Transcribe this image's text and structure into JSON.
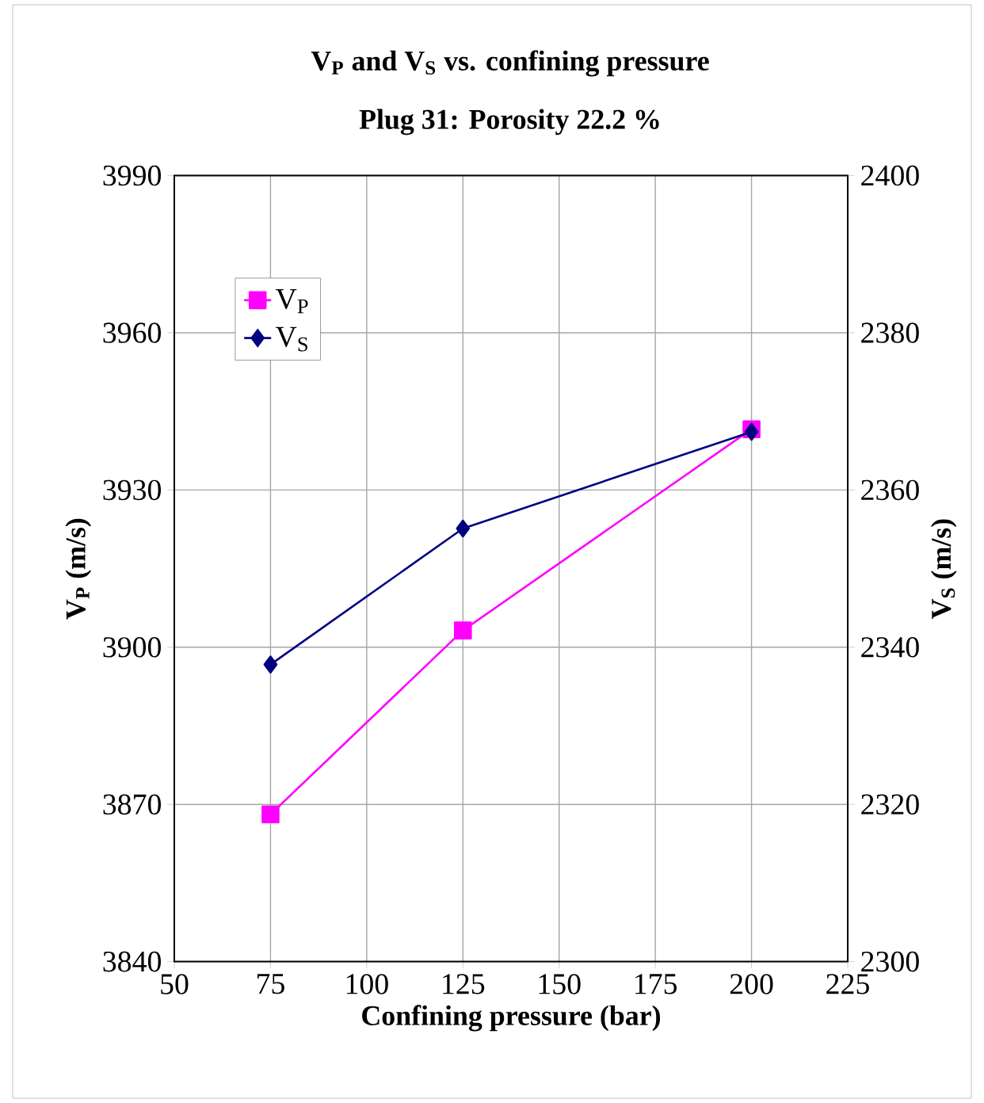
{
  "chart_data": {
    "type": "line",
    "title": "V$_{P}$ and V$_{S}$ vs. confining pressure",
    "subtitle": "Plug 31: Porosity 22.2 %",
    "xlabel": "Confining pressure (bar)",
    "ylabel": "V$_{P}$ (m/s)",
    "y2label": "V$_{S}$ (m/s)",
    "x": [
      75,
      125,
      200
    ],
    "series": [
      {
        "name": "V$_{P}$",
        "color": "#ff00ff",
        "marker": "square",
        "values": [
          3868.1,
          3903.2,
          3941.6
        ]
      },
      {
        "name": "V$_{S}$",
        "color": "#000080",
        "marker": "diamond",
        "axis": "y2",
        "values": [
          2337.8,
          2355.1,
          2367.4
        ]
      }
    ],
    "xlim": [
      50,
      225
    ],
    "xticks": [
      50,
      75,
      100,
      125,
      150,
      175,
      200,
      225
    ],
    "ylim": [
      3840,
      3990
    ],
    "yticks": [
      3840,
      3870,
      3900,
      3930,
      3960,
      3990
    ],
    "y2lim": [
      2300,
      2400
    ],
    "y2ticks": [
      2300,
      2320,
      2340,
      2360,
      2380,
      2400
    ],
    "grid": true,
    "legend": "top left",
    "line_style": "solid"
  }
}
